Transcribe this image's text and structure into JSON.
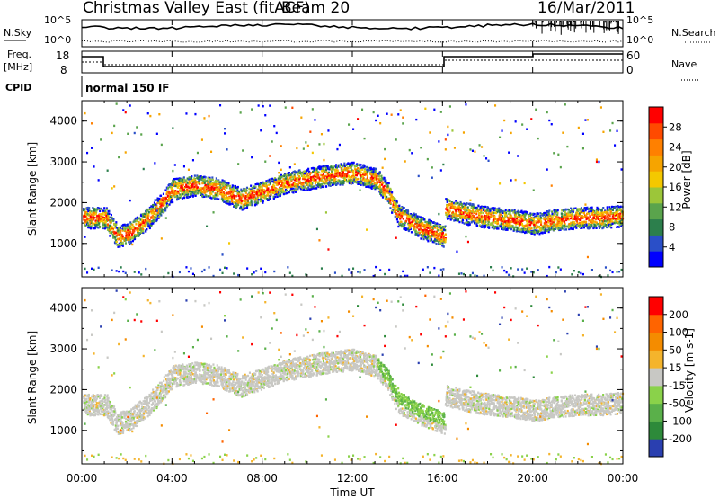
{
  "header": {
    "station": "Christmas Valley East (fitACF)",
    "beam": "Beam 20",
    "date": "16/Mar/2011"
  },
  "top_panels": {
    "nsky_label": "N.Sky",
    "nsearch_label": "N.Search",
    "count_ticks": [
      "10^5",
      "10^0"
    ],
    "freq_label": "Freq.",
    "freq_unit": "[MHz]",
    "freq_ticks": [
      "18",
      "8"
    ],
    "nave_label": "Nave",
    "nave_ticks": [
      "60",
      "0"
    ],
    "cpid_label": "CPID",
    "cpid_value": "normal 150 IF"
  },
  "chart_data": [
    {
      "type": "heatmap",
      "name": "power",
      "ylabel": "Slant Range [km]",
      "yticks": [
        "1000",
        "2000",
        "3000",
        "4000"
      ],
      "ylim": [
        180,
        4500
      ],
      "xlim": [
        0,
        24
      ],
      "colorbar_label": "Power [dB]",
      "colorbar_ticks": [
        "28",
        "24",
        "20",
        "16",
        "12",
        "8",
        "4"
      ],
      "colorbar_colors": [
        "#0000ff",
        "#2a4fc8",
        "#2c7f4c",
        "#5aa44c",
        "#9cc639",
        "#f4c800",
        "#f6a400",
        "#ff8000",
        "#ff4a00",
        "#ff0000"
      ],
      "echo_bands": [
        {
          "x": [
            0,
            1,
            1.5,
            2,
            3,
            4,
            5,
            6,
            7,
            9,
            11,
            12,
            13,
            13.5,
            14,
            15,
            16
          ],
          "y": [
            1650,
            1650,
            1200,
            1250,
            1700,
            2350,
            2450,
            2350,
            2100,
            2500,
            2700,
            2750,
            2600,
            2250,
            1700,
            1400,
            1200
          ]
        },
        {
          "x": [
            16,
            17,
            18,
            19,
            20,
            21,
            22,
            23,
            24
          ],
          "y": [
            1900,
            1750,
            1650,
            1600,
            1500,
            1600,
            1650,
            1650,
            1700
          ]
        }
      ]
    },
    {
      "type": "heatmap",
      "name": "velocity",
      "ylabel": "Slant Range [km]",
      "yticks": [
        "1000",
        "2000",
        "3000",
        "4000"
      ],
      "ylim": [
        180,
        4500
      ],
      "xlim": [
        0,
        24
      ],
      "xlabel": "Time UT",
      "xticks": [
        "00:00",
        "04:00",
        "08:00",
        "12:00",
        "16:00",
        "20:00",
        "00:00"
      ],
      "colorbar_label": "Velocity [m s-1]",
      "colorbar_ticks": [
        "200",
        "100",
        "50",
        "15",
        "-15",
        "-50",
        "-100",
        "-200"
      ],
      "colorbar_colors": [
        "#2a3fb0",
        "#2d8a3a",
        "#5ab04a",
        "#8ad24a",
        "#c8c8c4",
        "#f4b42c",
        "#f48c00",
        "#ff6400",
        "#ff0000"
      ]
    }
  ]
}
